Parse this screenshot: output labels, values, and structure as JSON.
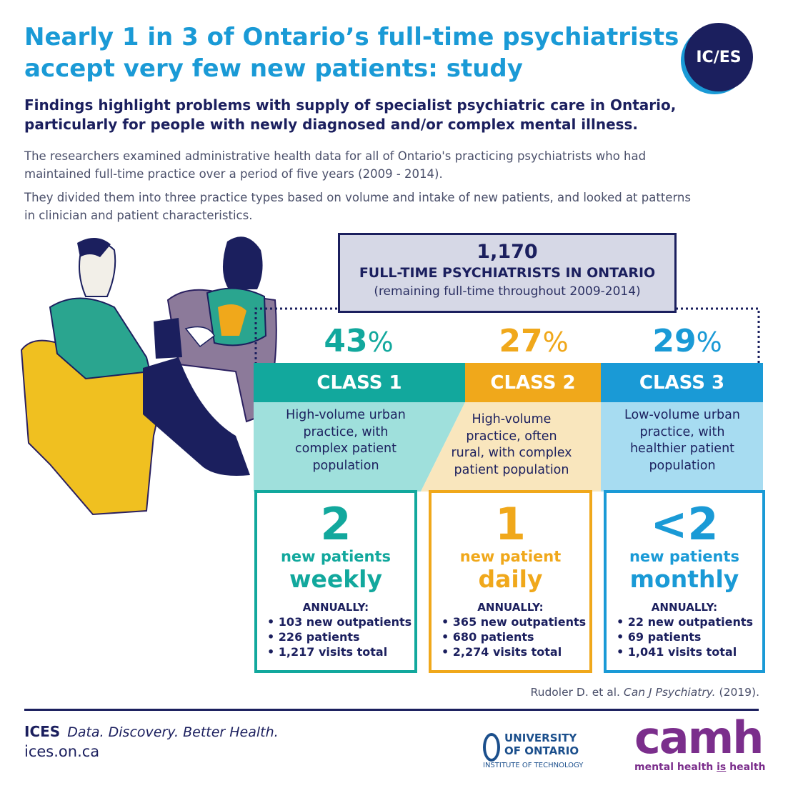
{
  "header": {
    "title_line1": "Nearly 1 in 3 of Ontario’s full-time psychiatrists",
    "title_line2": "accept very few new patients: study",
    "logo_text": "IC/ES"
  },
  "subtitle": {
    "line1": "Findings highlight problems with supply of specialist psychiatric care in Ontario,",
    "line2": "particularly for people with newly diagnosed and/or complex mental illness."
  },
  "intro": {
    "p1_line1": "The researchers examined administrative health data for all of Ontario's practicing psychiatrists who had",
    "p1_line2": "maintained full-time practice over a period of five years (2009 - 2014).",
    "p2_line1": "They divided them into three practice types based on volume and intake of new patients, and looked at patterns",
    "p2_line2": "in clinician and patient characteristics."
  },
  "total": {
    "number": "1,170",
    "label": "FULL-TIME PSYCHIATRISTS IN ONTARIO",
    "sub": "(remaining full-time throughout 2009-2014)"
  },
  "classes": [
    {
      "percent": "43",
      "percent_sign": "%",
      "name": "CLASS 1",
      "color": "#12a89d",
      "light_color": "#9fe0dc",
      "desc_lines": [
        "High-volume urban",
        "practice, with",
        "complex patient",
        "population"
      ],
      "big": "2",
      "new_patients": "new patients",
      "frequency": "weekly",
      "annually_label": "ANNUALLY:",
      "stats": [
        "103 new outpatients",
        "226 patients",
        "1,217 visits total"
      ]
    },
    {
      "percent": "27",
      "percent_sign": "%",
      "name": "CLASS 2",
      "color": "#f0a81b",
      "light_color": "#f9e6bd",
      "desc_lines": [
        "High-volume",
        "practice, often",
        "rural,  with complex",
        "patient population"
      ],
      "big": "1",
      "new_patients": "new patient",
      "frequency": "daily",
      "annually_label": "ANNUALLY:",
      "stats": [
        "365 new outpatients",
        "680 patients",
        "2,274 visits total"
      ]
    },
    {
      "percent": "29",
      "percent_sign": "%",
      "name": "CLASS 3",
      "color": "#1a9ad6",
      "light_color": "#a7dcf1",
      "desc_lines": [
        "Low-volume urban",
        "practice, with",
        "healthier patient",
        "population"
      ],
      "big": "<2",
      "new_patients": "new patients",
      "frequency": "monthly",
      "annually_label": "ANNUALLY:",
      "stats": [
        "22 new outpatients",
        "69 patients",
        "1,041 visits total"
      ]
    }
  ],
  "citation": {
    "prefix": "Rudoler D. et al.",
    "journal": "Can J Psychiatry.",
    "year": "(2019)."
  },
  "footer": {
    "ices": "ICES",
    "tagline": "Data. Discovery. Better Health.",
    "url": "ices.on.ca",
    "uo_line1": "UNIVERSITY",
    "uo_line2": "OF ONTARIO",
    "uo_line3": "INSTITUTE OF TECHNOLOGY",
    "camh": "camh",
    "camh_tag_a": "mental health ",
    "camh_tag_b": "is",
    "camh_tag_c": " health"
  }
}
